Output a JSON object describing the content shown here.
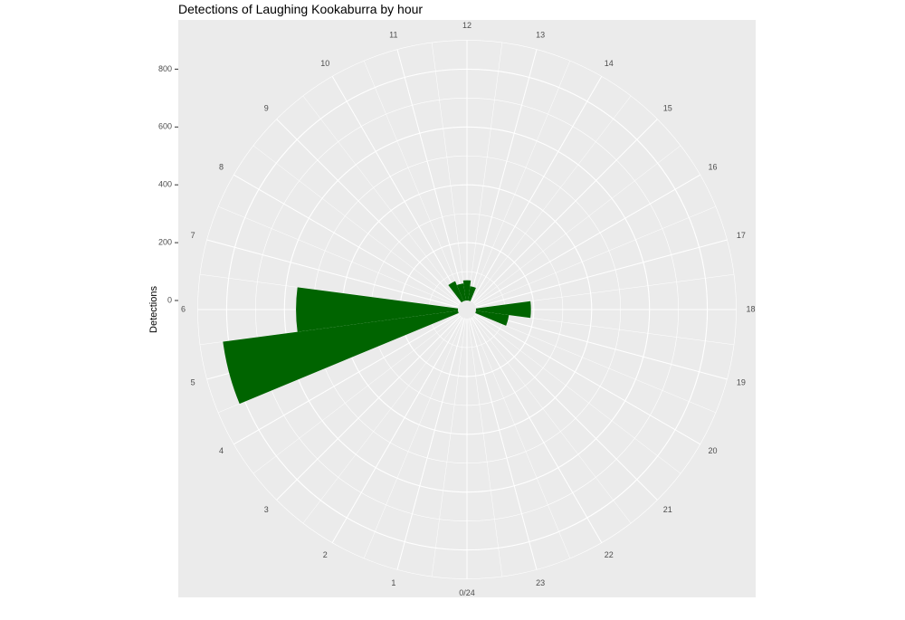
{
  "chart_data": {
    "type": "bar",
    "coordinate_system": "polar",
    "title": "Detections of Laughing Kookaburra by hour",
    "xlabel": "",
    "ylabel": "Detections",
    "angle_labels": [
      "0/24",
      "1",
      "2",
      "3",
      "4",
      "5",
      "6",
      "7",
      "8",
      "9",
      "10",
      "11",
      "12",
      "13",
      "14",
      "15",
      "16",
      "17",
      "18",
      "19",
      "20",
      "21",
      "22",
      "23"
    ],
    "y_ticks": [
      0,
      200,
      400,
      600,
      800
    ],
    "ylim": [
      0,
      900
    ],
    "grid": true,
    "legend": "none",
    "categories": [
      "0",
      "1",
      "2",
      "3",
      "4",
      "5",
      "6",
      "7",
      "8",
      "9",
      "10",
      "11",
      "12",
      "13",
      "14",
      "15",
      "16",
      "17",
      "18",
      "19",
      "20",
      "21",
      "22",
      "23"
    ],
    "values": [
      0,
      0,
      0,
      0,
      0,
      820,
      560,
      0,
      0,
      0,
      75,
      60,
      70,
      50,
      0,
      0,
      0,
      0,
      190,
      115,
      0,
      0,
      0,
      0
    ],
    "bar_color": "#006400",
    "panel_background": "#ebebeb",
    "grid_color": "#ffffff"
  }
}
